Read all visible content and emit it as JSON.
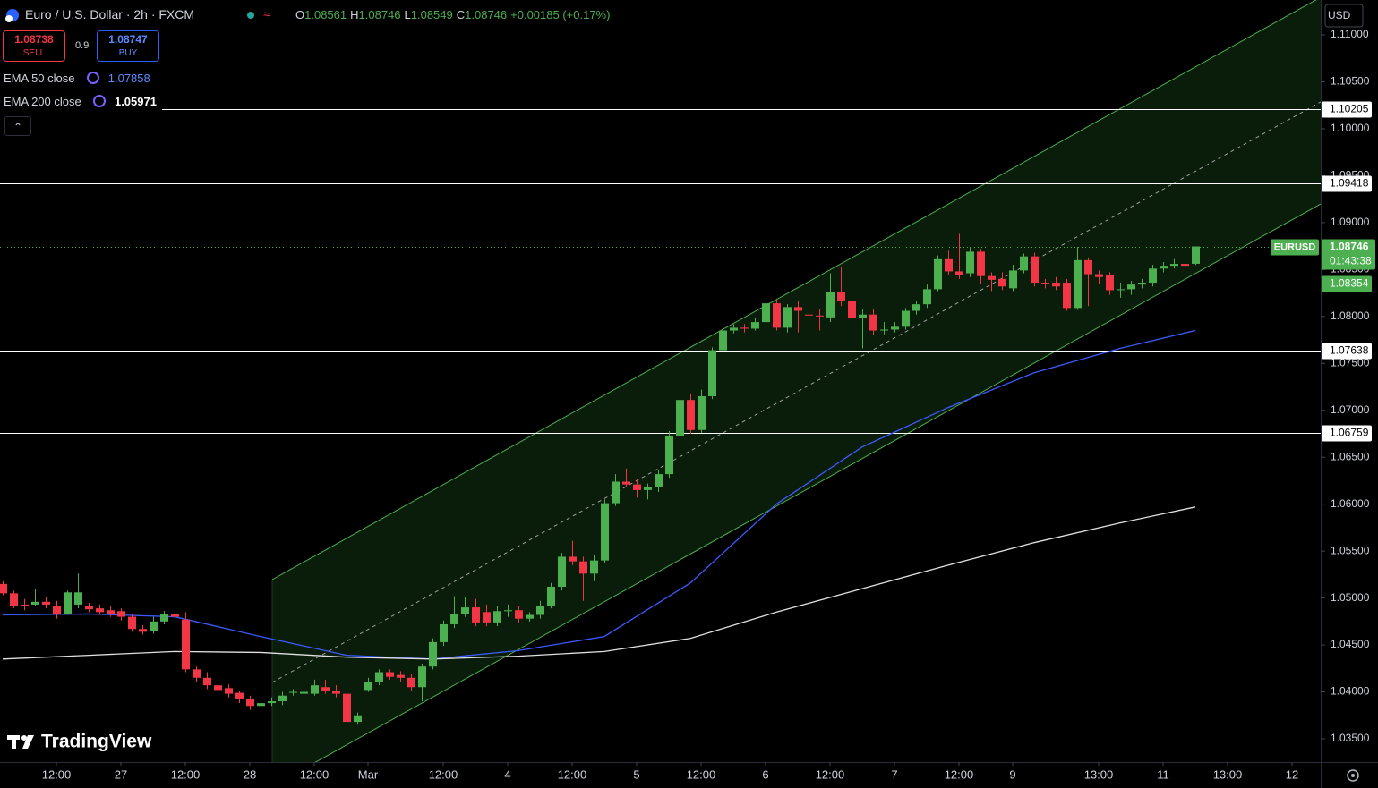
{
  "header": {
    "title": "Euro / U.S. Dollar · 2h · FXCM",
    "ohlc_labels": [
      "O",
      "H",
      "L",
      "C"
    ],
    "change": "+0.00185 (+0.17%)",
    "sell_price": 1.08738,
    "sell_label": "SELL",
    "spread": 0.9,
    "buy_price": 1.08747,
    "buy_label": "BUY",
    "currency": "USD",
    "symbol": "EURUSD",
    "countdown": "01:43:38",
    "brand": "TradingView"
  },
  "chart_data": {
    "type": "candlestick",
    "up_color": "#4caf50",
    "down_color": "#f23645",
    "xlim": [
      -0.25,
      122.67
    ],
    "xticks": [
      {
        "value": 5,
        "label": "12:00"
      },
      {
        "value": 11,
        "label": "27"
      },
      {
        "value": 17,
        "label": "12:00"
      },
      {
        "value": 23,
        "label": "28"
      },
      {
        "value": 29,
        "label": "12:00"
      },
      {
        "value": 34,
        "label": "Mar"
      },
      {
        "value": 41,
        "label": "12:00"
      },
      {
        "value": 47,
        "label": "4"
      },
      {
        "value": 53,
        "label": "12:00"
      },
      {
        "value": 59,
        "label": "5"
      },
      {
        "value": 65,
        "label": "12:00"
      },
      {
        "value": 71,
        "label": "6"
      },
      {
        "value": 77,
        "label": "12:00"
      },
      {
        "value": 83,
        "label": "7"
      },
      {
        "value": 89,
        "label": "12:00"
      },
      {
        "value": 94,
        "label": "9"
      },
      {
        "value": 102,
        "label": "13:00"
      },
      {
        "value": 108,
        "label": "11"
      },
      {
        "value": 114,
        "label": "13:00"
      },
      {
        "value": 120,
        "label": "12"
      }
    ],
    "ylim": [
      1.03252,
      1.11372
    ],
    "yticks": [
      {
        "value": 1.035,
        "label": "1.03500"
      },
      {
        "value": 1.04,
        "label": "1.04000"
      },
      {
        "value": 1.045,
        "label": "1.04500"
      },
      {
        "value": 1.05,
        "label": "1.05000"
      },
      {
        "value": 1.055,
        "label": "1.05500"
      },
      {
        "value": 1.06,
        "label": "1.06000"
      },
      {
        "value": 1.065,
        "label": "1.06500"
      },
      {
        "value": 1.07,
        "label": "1.07000"
      },
      {
        "value": 1.075,
        "label": "1.07500"
      },
      {
        "value": 1.08,
        "label": "1.08000"
      },
      {
        "value": 1.085,
        "label": "1.08500"
      },
      {
        "value": 1.09,
        "label": "1.09000"
      },
      {
        "value": 1.095,
        "label": "1.09500"
      },
      {
        "value": 1.1,
        "label": "1.10000"
      },
      {
        "value": 1.105,
        "label": "1.10500"
      },
      {
        "value": 1.11,
        "label": "1.11000"
      }
    ],
    "grid": false,
    "open": [
      1.0515,
      1.0505,
      1.0493,
      1.0493,
      1.0496,
      1.0491,
      1.0483,
      1.0493,
      1.0491,
      1.0489,
      1.0487,
      1.0486,
      1.048,
      1.0467,
      1.0465,
      1.0475,
      1.0483,
      1.0477,
      1.0424,
      1.0415,
      1.0407,
      1.0404,
      1.0399,
      1.0392,
      1.0385,
      1.0388,
      1.039,
      1.0399,
      1.0398,
      1.0398,
      1.0405,
      1.0401,
      1.0398,
      1.0368,
      1.0402,
      1.0411,
      1.0421,
      1.0418,
      1.0415,
      1.0405,
      1.0427,
      1.0453,
      1.0472,
      1.0483,
      1.049,
      1.0485,
      1.0474,
      1.0486,
      1.0487,
      1.0478,
      1.0482,
      1.0492,
      1.0512,
      1.0544,
      1.0539,
      1.0526,
      1.054,
      1.0601,
      1.0624,
      1.0621,
      1.0615,
      1.0618,
      1.0632,
      1.0673,
      1.0711,
      1.0679,
      1.0715,
      1.0764,
      1.0785,
      1.0788,
      1.0787,
      1.0794,
      1.0814,
      1.0788,
      1.081,
      1.0802,
      1.0801,
      1.0799,
      1.0826,
      1.0816,
      1.0798,
      1.0802,
      1.0785,
      1.0786,
      1.0789,
      1.0806,
      1.0813,
      1.0829,
      1.0861,
      1.0848,
      1.0846,
      1.0869,
      1.0843,
      1.084,
      1.083,
      1.0849,
      1.0864,
      1.0836,
      1.0836,
      1.0836,
      1.0809,
      1.086,
      1.0845,
      1.0844,
      1.0828,
      1.0829,
      1.0834,
      1.0836,
      1.0851,
      1.0854,
      1.0856,
      1.08561
    ],
    "high": [
      1.0518,
      1.0508,
      1.0499,
      1.051,
      1.0501,
      1.0497,
      1.0508,
      1.0526,
      1.0495,
      1.0493,
      1.0491,
      1.0489,
      1.0483,
      1.0471,
      1.048,
      1.0486,
      1.0489,
      1.0485,
      1.0427,
      1.0421,
      1.0411,
      1.0408,
      1.0401,
      1.0396,
      1.0391,
      1.0394,
      1.04,
      1.0403,
      1.0403,
      1.0413,
      1.0413,
      1.0407,
      1.0403,
      1.0378,
      1.0415,
      1.0424,
      1.0424,
      1.0422,
      1.0419,
      1.043,
      1.0457,
      1.0476,
      1.0502,
      1.0501,
      1.0499,
      1.0493,
      1.0491,
      1.0493,
      1.0491,
      1.0485,
      1.0497,
      1.0516,
      1.0548,
      1.0561,
      1.0544,
      1.0546,
      1.0605,
      1.0632,
      1.0638,
      1.0627,
      1.0622,
      1.0637,
      1.0678,
      1.0722,
      1.0718,
      1.0722,
      1.0767,
      1.0788,
      1.0792,
      1.0792,
      1.0799,
      1.0819,
      1.0819,
      1.0813,
      1.0817,
      1.0807,
      1.0808,
      1.0846,
      1.0853,
      1.0823,
      1.0808,
      1.0808,
      1.0794,
      1.0794,
      1.0809,
      1.0817,
      1.0834,
      1.0865,
      1.087,
      1.0888,
      1.0874,
      1.0872,
      1.0847,
      1.0847,
      1.0855,
      1.0867,
      1.0868,
      1.084,
      1.0842,
      1.084,
      1.0874,
      1.0863,
      1.0849,
      1.0847,
      1.0836,
      1.0838,
      1.084,
      1.0855,
      1.0858,
      1.0861,
      1.0874,
      1.08746
    ],
    "low": [
      1.0503,
      1.0489,
      1.0487,
      1.0491,
      1.0489,
      1.0478,
      1.0482,
      1.0489,
      1.0485,
      1.0482,
      1.048,
      1.0476,
      1.0464,
      1.0461,
      1.0462,
      1.0472,
      1.0476,
      1.0421,
      1.0411,
      1.0403,
      1.04,
      1.0394,
      1.0388,
      1.0381,
      1.0382,
      1.0385,
      1.0386,
      1.0396,
      1.0394,
      1.0396,
      1.0398,
      1.0394,
      1.0363,
      1.0365,
      1.04,
      1.0407,
      1.0413,
      1.0411,
      1.0401,
      1.039,
      1.0424,
      1.0449,
      1.0468,
      1.048,
      1.047,
      1.047,
      1.047,
      1.048,
      1.0474,
      1.0475,
      1.0478,
      1.0489,
      1.0508,
      1.0535,
      1.0497,
      1.0518,
      1.0537,
      1.0598,
      1.0618,
      1.0607,
      1.0605,
      1.0613,
      1.0628,
      1.0661,
      1.0675,
      1.0676,
      1.0712,
      1.076,
      1.0782,
      1.0783,
      1.0785,
      1.079,
      1.0785,
      1.0783,
      1.0783,
      1.0781,
      1.0785,
      1.0794,
      1.0811,
      1.0794,
      1.0766,
      1.078,
      1.0781,
      1.0783,
      1.0786,
      1.0802,
      1.0809,
      1.0827,
      1.0844,
      1.084,
      1.0842,
      1.0834,
      1.0827,
      1.0828,
      1.0827,
      1.0846,
      1.0832,
      1.083,
      1.0828,
      1.0806,
      1.0807,
      1.0811,
      1.0834,
      1.0823,
      1.082,
      1.0823,
      1.083,
      1.0832,
      1.0847,
      1.0851,
      1.0838,
      1.08549
    ],
    "close": [
      1.0505,
      1.0491,
      1.0491,
      1.0496,
      1.0493,
      1.0483,
      1.0506,
      1.0506,
      1.0488,
      1.0485,
      1.0483,
      1.048,
      1.0467,
      1.0464,
      1.0475,
      1.0483,
      1.048,
      1.0424,
      1.0415,
      1.0407,
      1.0402,
      1.0398,
      1.0392,
      1.0385,
      1.0388,
      1.039,
      1.0396,
      1.04,
      1.04,
      1.0407,
      1.0401,
      1.0398,
      1.0368,
      1.0375,
      1.0411,
      1.0421,
      1.0416,
      1.0415,
      1.0405,
      1.0427,
      1.0453,
      1.0472,
      1.0483,
      1.049,
      1.0474,
      1.0474,
      1.0486,
      1.0487,
      1.0478,
      1.0482,
      1.0492,
      1.0512,
      1.0544,
      1.0539,
      1.0526,
      1.054,
      1.0601,
      1.0624,
      1.0621,
      1.0615,
      1.0618,
      1.0632,
      1.0673,
      1.0711,
      1.0679,
      1.0715,
      1.0764,
      1.0785,
      1.0788,
      1.0787,
      1.0794,
      1.0814,
      1.0788,
      1.081,
      1.0806,
      1.0801,
      1.08,
      1.0826,
      1.0816,
      1.0798,
      1.0802,
      1.0785,
      1.0786,
      1.0789,
      1.0806,
      1.0813,
      1.0829,
      1.0861,
      1.0848,
      1.0844,
      1.0869,
      1.0843,
      1.0839,
      1.0832,
      1.0849,
      1.0864,
      1.0836,
      1.0835,
      1.0832,
      1.0809,
      1.086,
      1.0845,
      1.0842,
      1.0828,
      1.0829,
      1.0834,
      1.0836,
      1.0851,
      1.0854,
      1.0856,
      1.0854,
      1.08746
    ],
    "lines": [
      {
        "name": "EMA 50 close",
        "color": "#3d5afe",
        "legend_value": 1.07858,
        "x": [
          0,
          8,
          16,
          24,
          32,
          40,
          48,
          56,
          64,
          72,
          80,
          88,
          96,
          104,
          111
        ],
        "values": [
          1.0482,
          1.0483,
          1.048,
          1.0459,
          1.0439,
          1.0435,
          1.0444,
          1.0459,
          1.0516,
          1.06,
          1.0661,
          1.0703,
          1.074,
          1.0766,
          1.0785
        ]
      },
      {
        "name": "EMA 200 close",
        "color": "#e0e0e0",
        "legend_value": 1.05971,
        "x": [
          0,
          8,
          16,
          24,
          32,
          40,
          48,
          56,
          64,
          72,
          80,
          88,
          96,
          104,
          111
        ],
        "values": [
          1.0435,
          1.0439,
          1.0443,
          1.0442,
          1.0437,
          1.0435,
          1.0438,
          1.0443,
          1.0457,
          1.0485,
          1.051,
          1.0535,
          1.0559,
          1.058,
          1.0597
        ]
      }
    ],
    "levels": [
      {
        "value": 1.10205,
        "color": "#ffffff"
      },
      {
        "value": 1.09418,
        "color": "#ffffff"
      },
      {
        "value": 1.08354,
        "color": "#4caf50"
      },
      {
        "value": 1.07638,
        "color": "#ffffff"
      },
      {
        "value": 1.06759,
        "color": "#ffffff"
      }
    ]
  }
}
